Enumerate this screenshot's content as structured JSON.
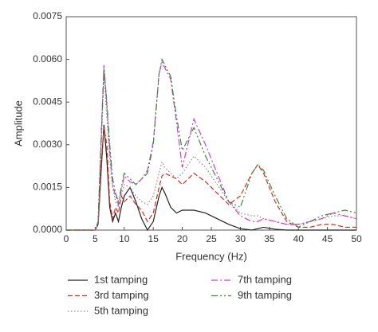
{
  "chart_data": {
    "type": "line",
    "xlabel": "Frequency (Hz)",
    "ylabel": "Amplitude",
    "x": [
      0,
      3,
      5,
      5.5,
      6,
      6.5,
      7,
      7.5,
      8,
      8.5,
      9,
      9.5,
      10,
      11,
      12,
      13,
      14,
      15,
      16,
      16.5,
      17,
      18,
      19,
      20,
      22,
      24,
      26,
      28,
      30,
      32,
      33,
      34,
      36,
      38,
      40,
      42,
      44,
      46,
      48,
      50
    ],
    "series": [
      {
        "name": "1st tamping",
        "color": "#222222",
        "dash": "solid",
        "values": [
          0,
          0,
          0,
          0.0002,
          0.002,
          0.0037,
          0.0025,
          0.0008,
          0.0003,
          0.0006,
          0.0003,
          0.0008,
          0.0012,
          0.0015,
          0.001,
          0.0004,
          0.0,
          0.0003,
          0.0012,
          0.0015,
          0.0013,
          0.0008,
          0.0006,
          0.0007,
          0.0007,
          0.0006,
          0.0004,
          0.0002,
          5e-05,
          0.0,
          5e-05,
          0.0001,
          3e-05,
          0,
          0,
          0,
          0,
          0,
          0,
          0
        ]
      },
      {
        "name": "3rd tamping",
        "color": "#d62a1e",
        "dash": "dashed",
        "values": [
          0,
          0,
          0,
          0.0002,
          0.0022,
          0.0036,
          0.003,
          0.001,
          0.0004,
          0.0008,
          0.0006,
          0.0012,
          0.001,
          0.0012,
          0.0009,
          0.0007,
          0.0003,
          0.0006,
          0.0015,
          0.0019,
          0.002,
          0.0019,
          0.0018,
          0.0016,
          0.002,
          0.0017,
          0.0013,
          0.0009,
          0.0012,
          0.002,
          0.0023,
          0.002,
          0.001,
          0.0003,
          0.0001,
          0.0001,
          0.0002,
          0.0002,
          0.0001,
          0.0001
        ]
      },
      {
        "name": "5th tamping",
        "color": "#888888",
        "dash": "dotted",
        "values": [
          0,
          0,
          0,
          0.0002,
          0.0028,
          0.0055,
          0.004,
          0.0025,
          0.0015,
          0.001,
          0.0008,
          0.0012,
          0.0016,
          0.0015,
          0.0012,
          0.001,
          0.0009,
          0.0012,
          0.002,
          0.0024,
          0.0022,
          0.002,
          0.0018,
          0.002,
          0.0026,
          0.0022,
          0.0016,
          0.001,
          0.0006,
          0.0005,
          0.0005,
          0.0004,
          0.0003,
          0.0002,
          0.0002,
          0.0003,
          0.0004,
          0.0005,
          0.0005,
          0.0004
        ]
      },
      {
        "name": "7th tamping",
        "color": "#d23cc8",
        "dash": "dashdot",
        "values": [
          0,
          0,
          0,
          0.0003,
          0.0032,
          0.0058,
          0.0044,
          0.0028,
          0.0016,
          0.0012,
          0.0009,
          0.0014,
          0.0019,
          0.0017,
          0.0016,
          0.0018,
          0.0021,
          0.0031,
          0.0055,
          0.0059,
          0.0057,
          0.0053,
          0.0038,
          0.0022,
          0.0039,
          0.003,
          0.002,
          0.001,
          0.0005,
          0.0003,
          0.0003,
          0.0004,
          0.0003,
          0.0002,
          0.0002,
          0.0003,
          0.0004,
          0.0006,
          0.0005,
          0.0004
        ]
      },
      {
        "name": "9th tamping",
        "color": "#3a8a3a",
        "dash": "dashdotdot",
        "values": [
          0,
          0,
          0,
          0.0003,
          0.003,
          0.0057,
          0.0045,
          0.003,
          0.0018,
          0.0013,
          0.001,
          0.0015,
          0.002,
          0.0018,
          0.0016,
          0.0018,
          0.002,
          0.003,
          0.0055,
          0.006,
          0.0058,
          0.0054,
          0.004,
          0.0028,
          0.0036,
          0.0026,
          0.0018,
          0.001,
          0.0008,
          0.002,
          0.0023,
          0.0021,
          0.0012,
          0.0004,
          0.0001,
          0.0003,
          0.0005,
          0.0006,
          0.0007,
          0.0006
        ]
      }
    ],
    "xlim": [
      0,
      50
    ],
    "xticks": [
      0,
      5,
      10,
      15,
      20,
      25,
      30,
      35,
      40,
      45,
      50
    ],
    "ylim": [
      0,
      0.0075
    ],
    "yticks": [
      {
        "value": 0,
        "label": "0.0000"
      },
      0.0015,
      {
        "value": 0.003,
        "label": "0.0030"
      },
      0.0045,
      {
        "value": 0.006,
        "label": "0.0060"
      },
      0.0075
    ],
    "grid": false
  }
}
